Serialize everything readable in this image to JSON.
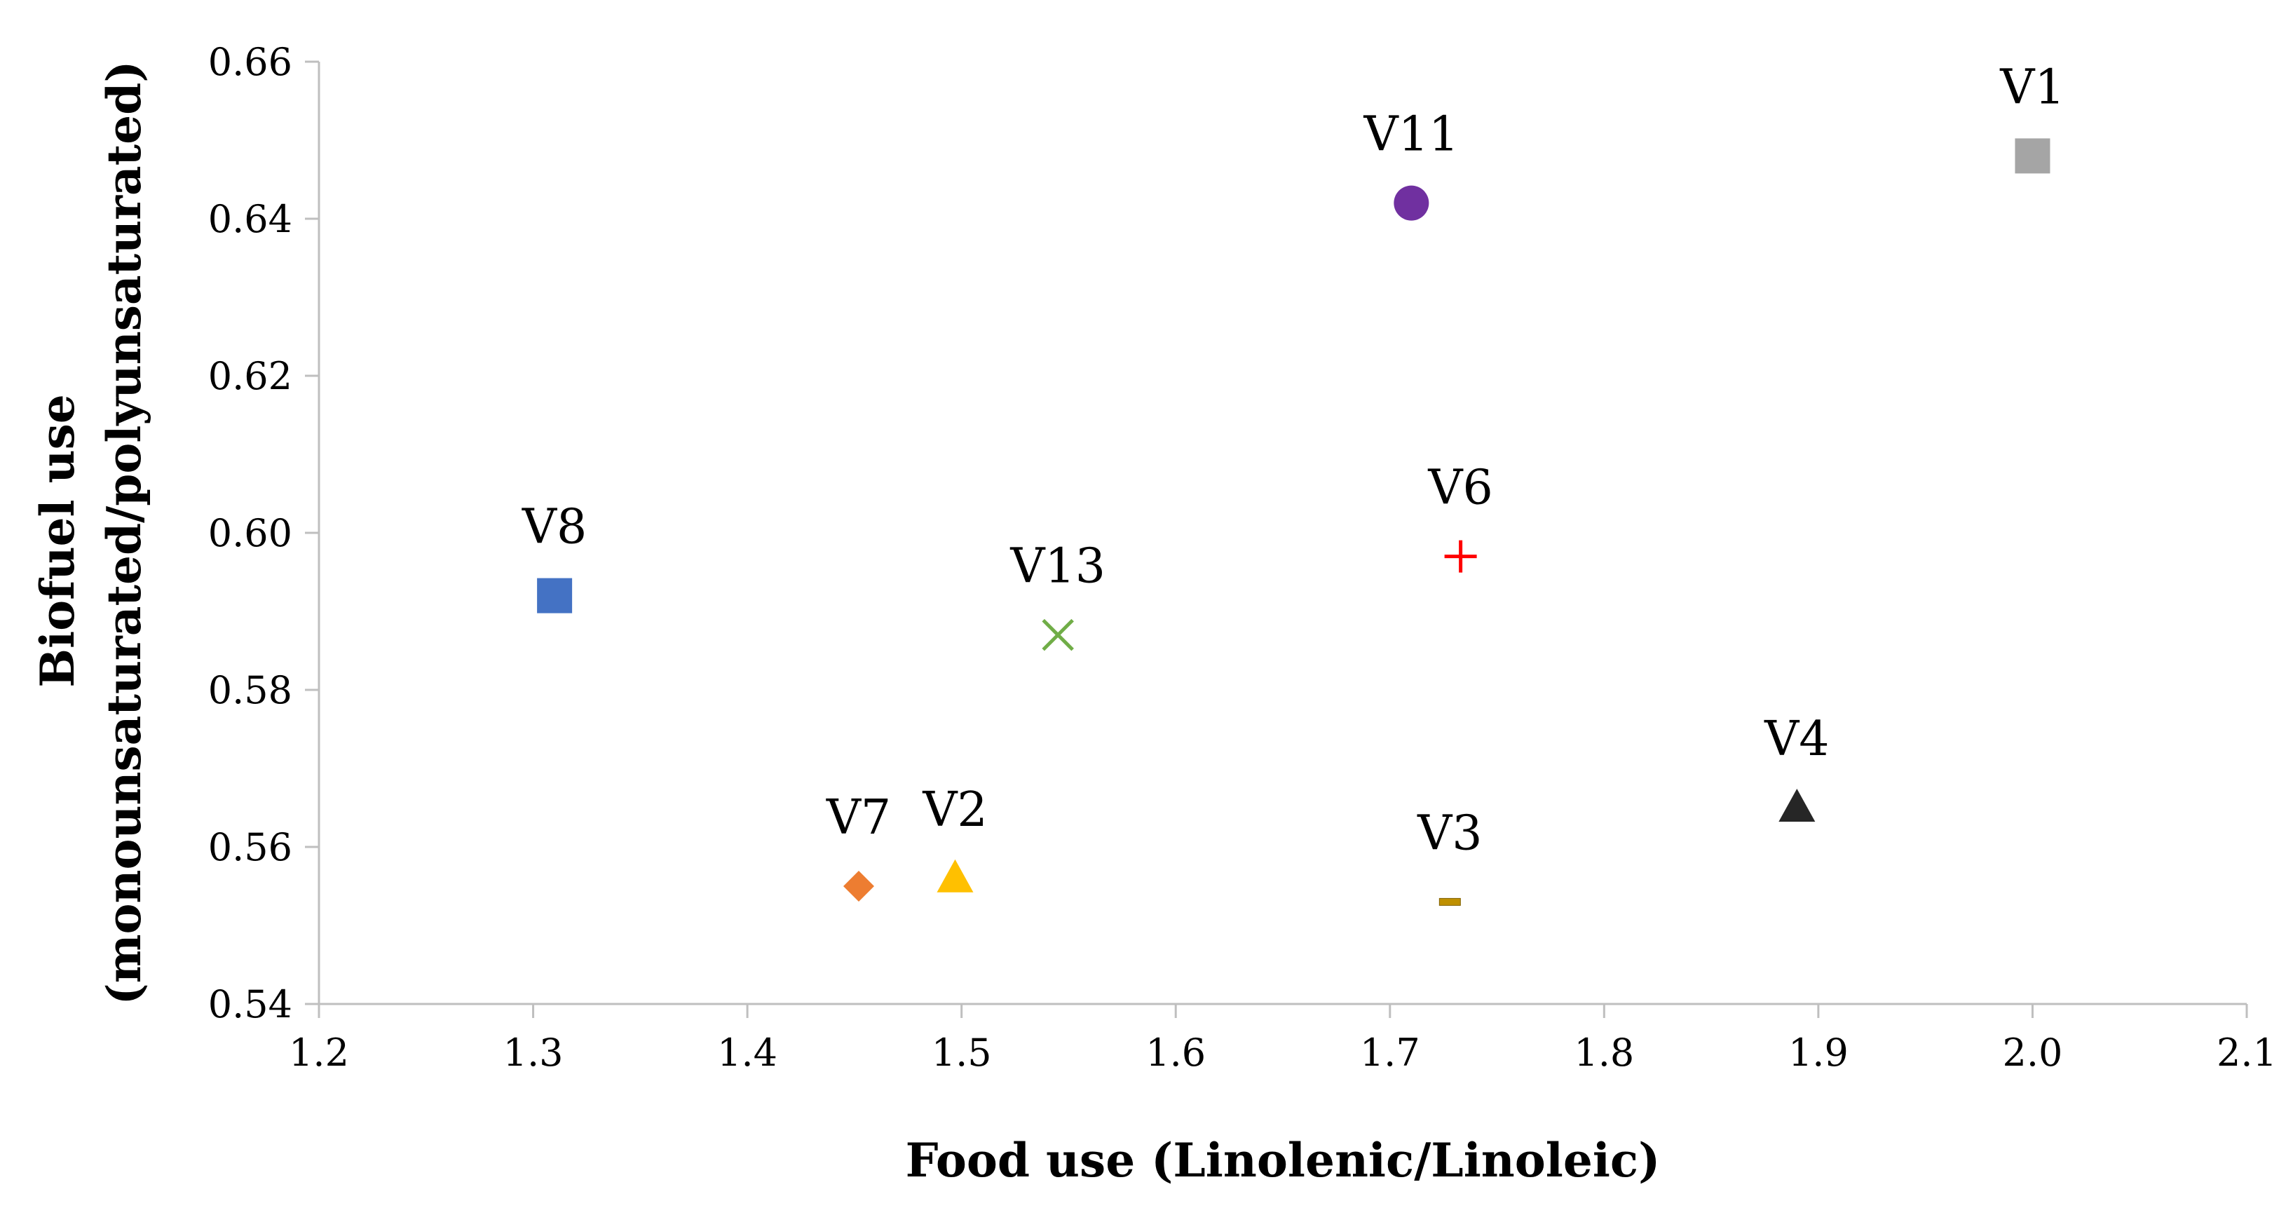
{
  "chart_data": {
    "type": "scatter",
    "title": "",
    "xlabel": "Food use (Linolenic/Linoleic)",
    "ylabel_lines": [
      "Biofuel use",
      "(monounsaturated/polyunsaturated)"
    ],
    "xlim": [
      1.2,
      2.1
    ],
    "ylim": [
      0.54,
      0.66
    ],
    "x_ticks": [
      1.2,
      1.3,
      1.4,
      1.5,
      1.6,
      1.7,
      1.8,
      1.9,
      2.0,
      2.1
    ],
    "x_tick_labels": [
      "1.2",
      "1.3",
      "1.4",
      "1.5",
      "1.6",
      "1.7",
      "1.8",
      "1.9",
      "2.0",
      "2.1"
    ],
    "y_ticks": [
      0.54,
      0.56,
      0.58,
      0.6,
      0.62,
      0.64,
      0.66
    ],
    "y_tick_labels": [
      "0.54",
      "0.56",
      "0.58",
      "0.60",
      "0.62",
      "0.64",
      "0.66"
    ],
    "grid": false,
    "legend": "none",
    "points": [
      {
        "label": "V1",
        "x": 2.0,
        "y": 0.648,
        "marker": "square",
        "color": "#a5a5a5"
      },
      {
        "label": "V11",
        "x": 1.71,
        "y": 0.642,
        "marker": "circle",
        "color": "#7030a0"
      },
      {
        "label": "V6",
        "x": 1.733,
        "y": 0.597,
        "marker": "plus",
        "color": "#ff0000"
      },
      {
        "label": "V8",
        "x": 1.31,
        "y": 0.592,
        "marker": "square",
        "color": "#4472c4"
      },
      {
        "label": "V13",
        "x": 1.545,
        "y": 0.587,
        "marker": "x",
        "color": "#70ad47"
      },
      {
        "label": "V4",
        "x": 1.89,
        "y": 0.565,
        "marker": "triangle",
        "color": "#262626"
      },
      {
        "label": "V2",
        "x": 1.497,
        "y": 0.556,
        "marker": "triangle",
        "color": "#ffc000"
      },
      {
        "label": "V7",
        "x": 1.452,
        "y": 0.555,
        "marker": "diamond",
        "color": "#ed7d31"
      },
      {
        "label": "V3",
        "x": 1.728,
        "y": 0.553,
        "marker": "dash",
        "color": "#bf9000"
      }
    ]
  }
}
